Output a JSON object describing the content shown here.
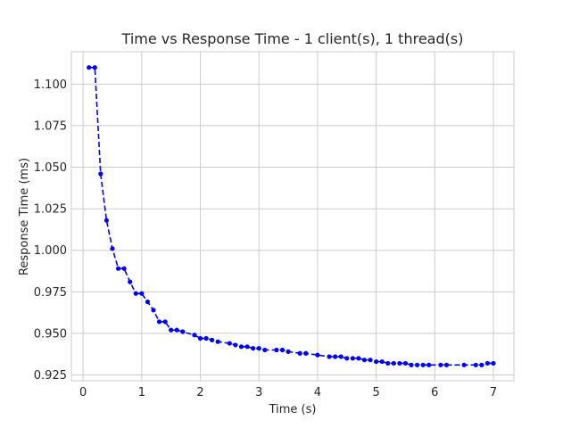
{
  "chart_data": {
    "type": "line",
    "title": "Time vs Response Time - 1 client(s), 1 thread(s)",
    "xlabel": "Time (s)",
    "ylabel": "Response Time (ms)",
    "xlim": [
      -0.2,
      7.35
    ],
    "ylim": [
      0.9215,
      1.1195
    ],
    "xticks": [
      "0",
      "1",
      "2",
      "3",
      "4",
      "5",
      "6",
      "7"
    ],
    "yticks": [
      "0.925",
      "0.950",
      "0.975",
      "1.000",
      "1.025",
      "1.050",
      "1.075",
      "1.100"
    ],
    "grid": true,
    "line_style": "dashed",
    "marker": "circle",
    "color": "#0000ff",
    "series": [
      {
        "x": [
          0.1,
          0.2,
          0.3,
          0.4,
          0.5,
          0.6,
          0.7,
          0.8,
          0.9,
          1.0,
          1.1,
          1.2,
          1.3,
          1.4,
          1.5,
          1.6,
          1.7,
          1.9,
          2.0,
          2.1,
          2.2,
          2.3,
          2.5,
          2.6,
          2.7,
          2.8,
          2.9,
          3.0,
          3.1,
          3.3,
          3.4,
          3.5,
          3.7,
          3.8,
          4.0,
          4.2,
          4.3,
          4.4,
          4.5,
          4.6,
          4.7,
          4.8,
          4.9,
          5.0,
          5.1,
          5.2,
          5.3,
          5.4,
          5.5,
          5.6,
          5.7,
          5.8,
          5.9,
          6.1,
          6.2,
          6.5,
          6.7,
          6.8,
          6.9,
          7.0
        ],
        "y": [
          1.11,
          1.11,
          1.046,
          1.018,
          1.001,
          0.989,
          0.989,
          0.981,
          0.974,
          0.974,
          0.969,
          0.964,
          0.957,
          0.957,
          0.952,
          0.952,
          0.951,
          0.949,
          0.947,
          0.947,
          0.946,
          0.945,
          0.944,
          0.943,
          0.942,
          0.942,
          0.941,
          0.941,
          0.94,
          0.94,
          0.94,
          0.939,
          0.938,
          0.938,
          0.937,
          0.936,
          0.936,
          0.936,
          0.935,
          0.935,
          0.935,
          0.934,
          0.934,
          0.933,
          0.933,
          0.932,
          0.932,
          0.932,
          0.932,
          0.931,
          0.931,
          0.931,
          0.931,
          0.931,
          0.931,
          0.931,
          0.931,
          0.931,
          0.932,
          0.932
        ]
      }
    ]
  }
}
